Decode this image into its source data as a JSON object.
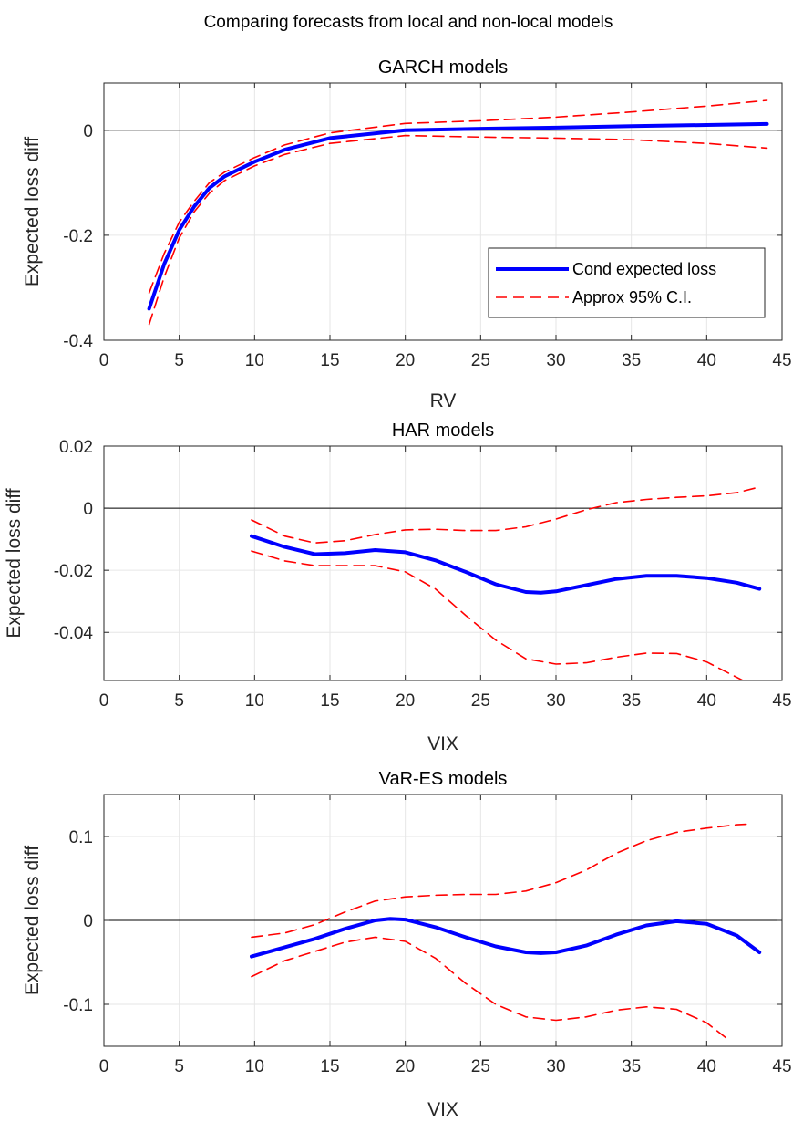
{
  "figure": {
    "suptitle": "Comparing forecasts from local and non-local models"
  },
  "legend": {
    "entries": [
      "Cond expected loss",
      "Approx 95% C.I."
    ]
  },
  "chart_data": [
    {
      "type": "line",
      "title": "GARCH models",
      "xlabel": "RV",
      "ylabel": "Expected loss diff",
      "xlim": [
        0,
        45
      ],
      "ylim": [
        -0.4,
        0.09
      ],
      "xticks": [
        0,
        5,
        10,
        15,
        20,
        25,
        30,
        35,
        40,
        45
      ],
      "yticks": [
        -0.4,
        -0.2,
        0
      ],
      "ytick_labels": [
        "-0.4",
        "-0.2",
        "0"
      ],
      "grid": true,
      "zero_line": true,
      "legend_position": "bottom-right",
      "series": [
        {
          "name": "Cond expected loss",
          "color": "#0000ff",
          "style": "solid",
          "x": [
            3,
            4,
            5,
            6,
            7,
            8,
            10,
            12,
            15,
            20,
            25,
            30,
            35,
            40,
            44
          ],
          "y": [
            -0.34,
            -0.255,
            -0.19,
            -0.145,
            -0.11,
            -0.088,
            -0.06,
            -0.037,
            -0.015,
            0.0,
            0.003,
            0.005,
            0.008,
            0.01,
            0.012
          ]
        },
        {
          "name": "Approx 95% C.I.",
          "color": "#ff0000",
          "style": "dashed",
          "x": [
            3,
            4,
            5,
            6,
            7,
            8,
            10,
            12,
            15,
            20,
            25,
            30,
            35,
            40,
            44
          ],
          "y": [
            -0.31,
            -0.235,
            -0.175,
            -0.135,
            -0.1,
            -0.08,
            -0.052,
            -0.028,
            -0.005,
            0.013,
            0.018,
            0.025,
            0.035,
            0.046,
            0.057
          ]
        },
        {
          "name": "",
          "color": "#ff0000",
          "style": "dashed",
          "x": [
            3,
            4,
            5,
            6,
            7,
            8,
            10,
            12,
            15,
            20,
            25,
            30,
            35,
            40,
            44
          ],
          "y": [
            -0.37,
            -0.28,
            -0.205,
            -0.155,
            -0.12,
            -0.096,
            -0.068,
            -0.046,
            -0.025,
            -0.01,
            -0.013,
            -0.015,
            -0.018,
            -0.025,
            -0.034
          ]
        }
      ]
    },
    {
      "type": "line",
      "title": "HAR models",
      "xlabel": "VIX",
      "ylabel": "Expected loss diff",
      "xlim": [
        0,
        45
      ],
      "ylim": [
        -0.0555,
        0.02
      ],
      "xticks": [
        0,
        5,
        10,
        15,
        20,
        25,
        30,
        35,
        40,
        45
      ],
      "yticks": [
        -0.04,
        -0.02,
        0,
        0.02
      ],
      "ytick_labels": [
        "-0.04",
        "-0.02",
        "0",
        "0.02"
      ],
      "grid": true,
      "zero_line": true,
      "series": [
        {
          "name": "Cond expected loss",
          "color": "#0000ff",
          "style": "solid",
          "x": [
            9.8,
            12,
            14,
            16,
            18,
            20,
            22,
            24,
            26,
            28,
            29,
            30,
            32,
            34,
            36,
            38,
            40,
            42,
            43.5
          ],
          "y": [
            -0.009,
            -0.0125,
            -0.0148,
            -0.0145,
            -0.0135,
            -0.0142,
            -0.0168,
            -0.0205,
            -0.0245,
            -0.027,
            -0.0272,
            -0.0268,
            -0.0248,
            -0.0228,
            -0.0218,
            -0.0218,
            -0.0225,
            -0.024,
            -0.026
          ]
        },
        {
          "name": "Approx 95% C.I.",
          "color": "#ff0000",
          "style": "dashed",
          "x": [
            9.8,
            12,
            14,
            16,
            18,
            20,
            22,
            24,
            26,
            28,
            30,
            32,
            34,
            36,
            38,
            40,
            42,
            43.5
          ],
          "y": [
            -0.0038,
            -0.009,
            -0.0112,
            -0.0105,
            -0.0085,
            -0.007,
            -0.0068,
            -0.0072,
            -0.0072,
            -0.006,
            -0.0035,
            -0.0005,
            0.0018,
            0.0028,
            0.0035,
            0.004,
            0.005,
            0.0068
          ]
        },
        {
          "name": "",
          "color": "#ff0000",
          "style": "dashed",
          "x": [
            9.8,
            12,
            14,
            16,
            18,
            20,
            22,
            24,
            26,
            28,
            30,
            32,
            34,
            36,
            38,
            40,
            42,
            42.8
          ],
          "y": [
            -0.0138,
            -0.017,
            -0.0185,
            -0.0185,
            -0.0185,
            -0.0205,
            -0.026,
            -0.0345,
            -0.0425,
            -0.0485,
            -0.0502,
            -0.0498,
            -0.048,
            -0.0467,
            -0.0468,
            -0.0495,
            -0.0545,
            -0.0565
          ]
        }
      ]
    },
    {
      "type": "line",
      "title": "VaR-ES models",
      "xlabel": "VIX",
      "ylabel": "Expected loss diff",
      "xlim": [
        0,
        45
      ],
      "ylim": [
        -0.15,
        0.15
      ],
      "xticks": [
        0,
        5,
        10,
        15,
        20,
        25,
        30,
        35,
        40,
        45
      ],
      "yticks": [
        -0.1,
        0,
        0.1
      ],
      "ytick_labels": [
        "-0.1",
        "0",
        "0.1"
      ],
      "grid": true,
      "zero_line": true,
      "series": [
        {
          "name": "Cond expected loss",
          "color": "#0000ff",
          "style": "solid",
          "x": [
            9.8,
            12,
            14,
            16,
            18,
            19,
            20,
            22,
            24,
            26,
            28,
            29,
            30,
            32,
            34,
            36,
            38,
            40,
            42,
            43.5
          ],
          "y": [
            -0.043,
            -0.032,
            -0.022,
            -0.01,
            0.0,
            0.002,
            0.001,
            -0.008,
            -0.02,
            -0.031,
            -0.038,
            -0.039,
            -0.038,
            -0.03,
            -0.017,
            -0.006,
            -0.001,
            -0.004,
            -0.018,
            -0.038
          ]
        },
        {
          "name": "Approx 95% C.I.",
          "color": "#ff0000",
          "style": "dashed",
          "x": [
            9.8,
            12,
            14,
            16,
            18,
            20,
            22,
            24,
            26,
            28,
            30,
            32,
            34,
            36,
            38,
            40,
            42,
            43
          ],
          "y": [
            -0.02,
            -0.015,
            -0.005,
            0.01,
            0.023,
            0.028,
            0.03,
            0.031,
            0.031,
            0.035,
            0.045,
            0.06,
            0.08,
            0.095,
            0.105,
            0.11,
            0.114,
            0.115
          ]
        },
        {
          "name": "",
          "color": "#ff0000",
          "style": "dashed",
          "x": [
            9.8,
            12,
            14,
            16,
            18,
            20,
            22,
            24,
            26,
            28,
            30,
            32,
            34,
            36,
            38,
            40,
            41.5
          ],
          "y": [
            -0.067,
            -0.048,
            -0.037,
            -0.026,
            -0.02,
            -0.025,
            -0.045,
            -0.075,
            -0.1,
            -0.115,
            -0.119,
            -0.115,
            -0.107,
            -0.103,
            -0.106,
            -0.122,
            -0.143
          ]
        }
      ]
    }
  ]
}
